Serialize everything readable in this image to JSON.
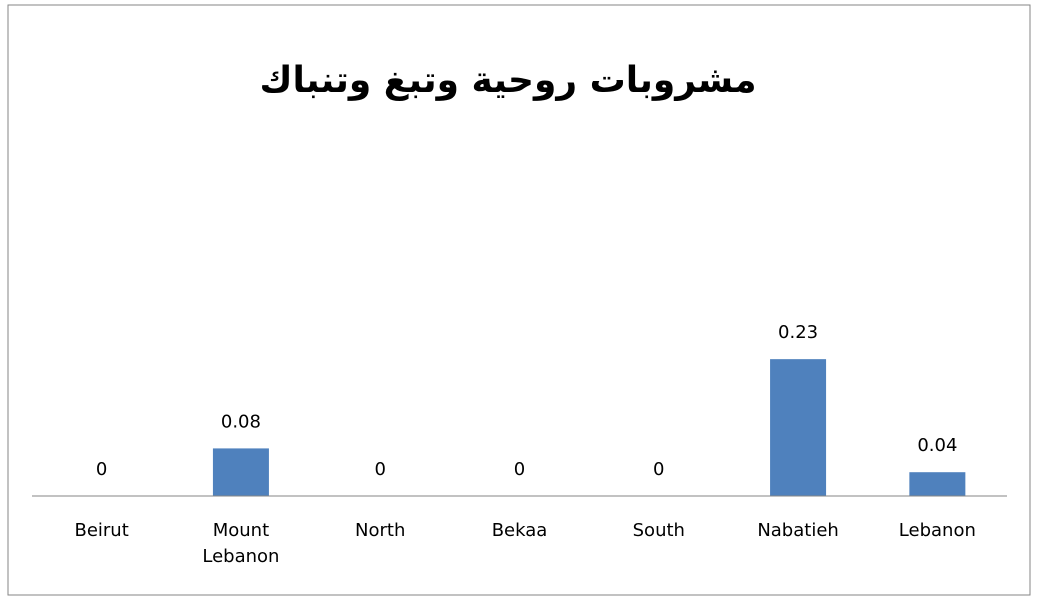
{
  "chart_data": {
    "type": "bar",
    "title": "مشروبات روحية وتبغ وتنباك",
    "categories": [
      "Beirut",
      "Mount Lebanon",
      "North",
      "Bekaa",
      "South",
      "Nabatieh",
      "Lebanon"
    ],
    "values": [
      0,
      0.08,
      0,
      0,
      0,
      0.23,
      0.04
    ],
    "color": "#4f81bd",
    "ylim": [
      0,
      0.6
    ]
  }
}
